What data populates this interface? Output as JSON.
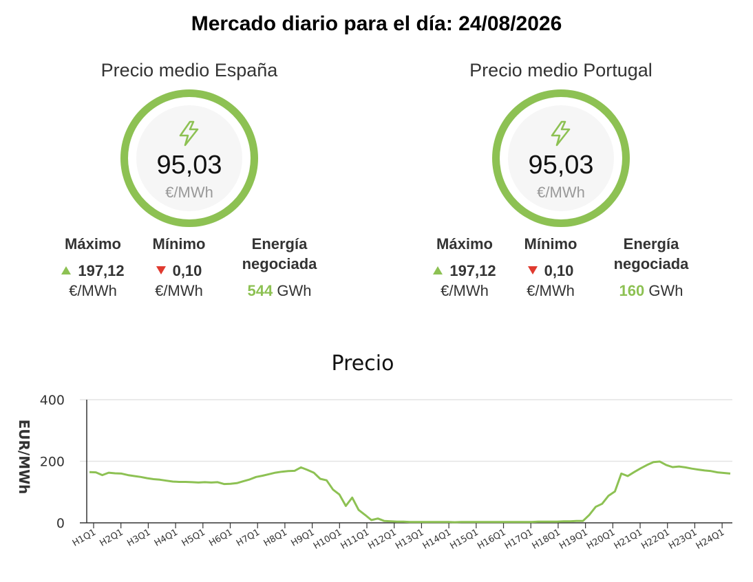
{
  "header": {
    "title": "Mercado diario para el día: 24/08/2026"
  },
  "markets": [
    {
      "label": "Precio medio España",
      "price": "95,03",
      "unit": "€/MWh",
      "max_label": "Máximo",
      "max_value": "197,12",
      "max_unit": "€/MWh",
      "min_label": "Mínimo",
      "min_value": "0,10",
      "min_unit": "€/MWh",
      "energy_label_1": "Energía",
      "energy_label_2": "negociada",
      "energy_value": "544",
      "energy_unit": "GWh"
    },
    {
      "label": "Precio medio Portugal",
      "price": "95,03",
      "unit": "€/MWh",
      "max_label": "Máximo",
      "max_value": "197,12",
      "max_unit": "€/MWh",
      "min_label": "Mínimo",
      "min_value": "0,10",
      "min_unit": "€/MWh",
      "energy_label_1": "Energía",
      "energy_label_2": "negociada",
      "energy_value": "160",
      "energy_unit": "GWh"
    }
  ],
  "icons": {
    "price": "lightning-bolt-icon",
    "max": "triangle-up-icon",
    "min": "triangle-down-icon"
  },
  "colors": {
    "accent": "#8dc153",
    "down": "#e03a2f",
    "ring_bg": "#f6f6f6",
    "grid": "#e3e3e3"
  },
  "chart_data": {
    "type": "line",
    "title": "Precio",
    "ylabel": "EUR/MWh",
    "xlabel": "",
    "ylim": [
      0,
      400
    ],
    "yticks": [
      0,
      200,
      400
    ],
    "grid": true,
    "legend": "none",
    "tick_labels": [
      "H1Q1",
      "H2Q1",
      "H3Q1",
      "H4Q1",
      "H5Q1",
      "H6Q1",
      "H7Q1",
      "H8Q1",
      "H9Q1",
      "H10Q1",
      "H11Q1",
      "H12Q1",
      "H13Q1",
      "H14Q1",
      "H15Q1",
      "H16Q1",
      "H17Q1",
      "H18Q1",
      "H19Q1",
      "H20Q1",
      "H21Q1",
      "H22Q1",
      "H23Q1",
      "H24Q1"
    ],
    "series": [
      {
        "color": "#8dc153",
        "values": [
          165,
          164,
          155,
          163,
          161,
          160,
          155,
          152,
          149,
          145,
          142,
          140,
          137,
          134,
          133,
          133,
          132,
          131,
          132,
          131,
          132,
          126,
          127,
          129,
          135,
          141,
          149,
          153,
          158,
          163,
          166,
          168,
          169,
          180,
          172,
          163,
          143,
          138,
          108,
          92,
          55,
          82,
          42,
          26,
          9,
          14,
          6,
          5,
          4,
          4,
          3,
          3,
          3,
          3,
          3,
          3,
          3,
          2,
          3,
          3,
          3,
          3,
          3,
          3,
          3,
          3,
          3,
          3,
          3,
          3,
          4,
          4,
          4,
          4,
          5,
          5,
          6,
          6,
          26,
          52,
          62,
          88,
          102,
          160,
          152,
          165,
          177,
          188,
          197,
          199,
          188,
          181,
          183,
          180,
          176,
          173,
          170,
          168,
          164,
          162,
          160
        ]
      }
    ]
  }
}
